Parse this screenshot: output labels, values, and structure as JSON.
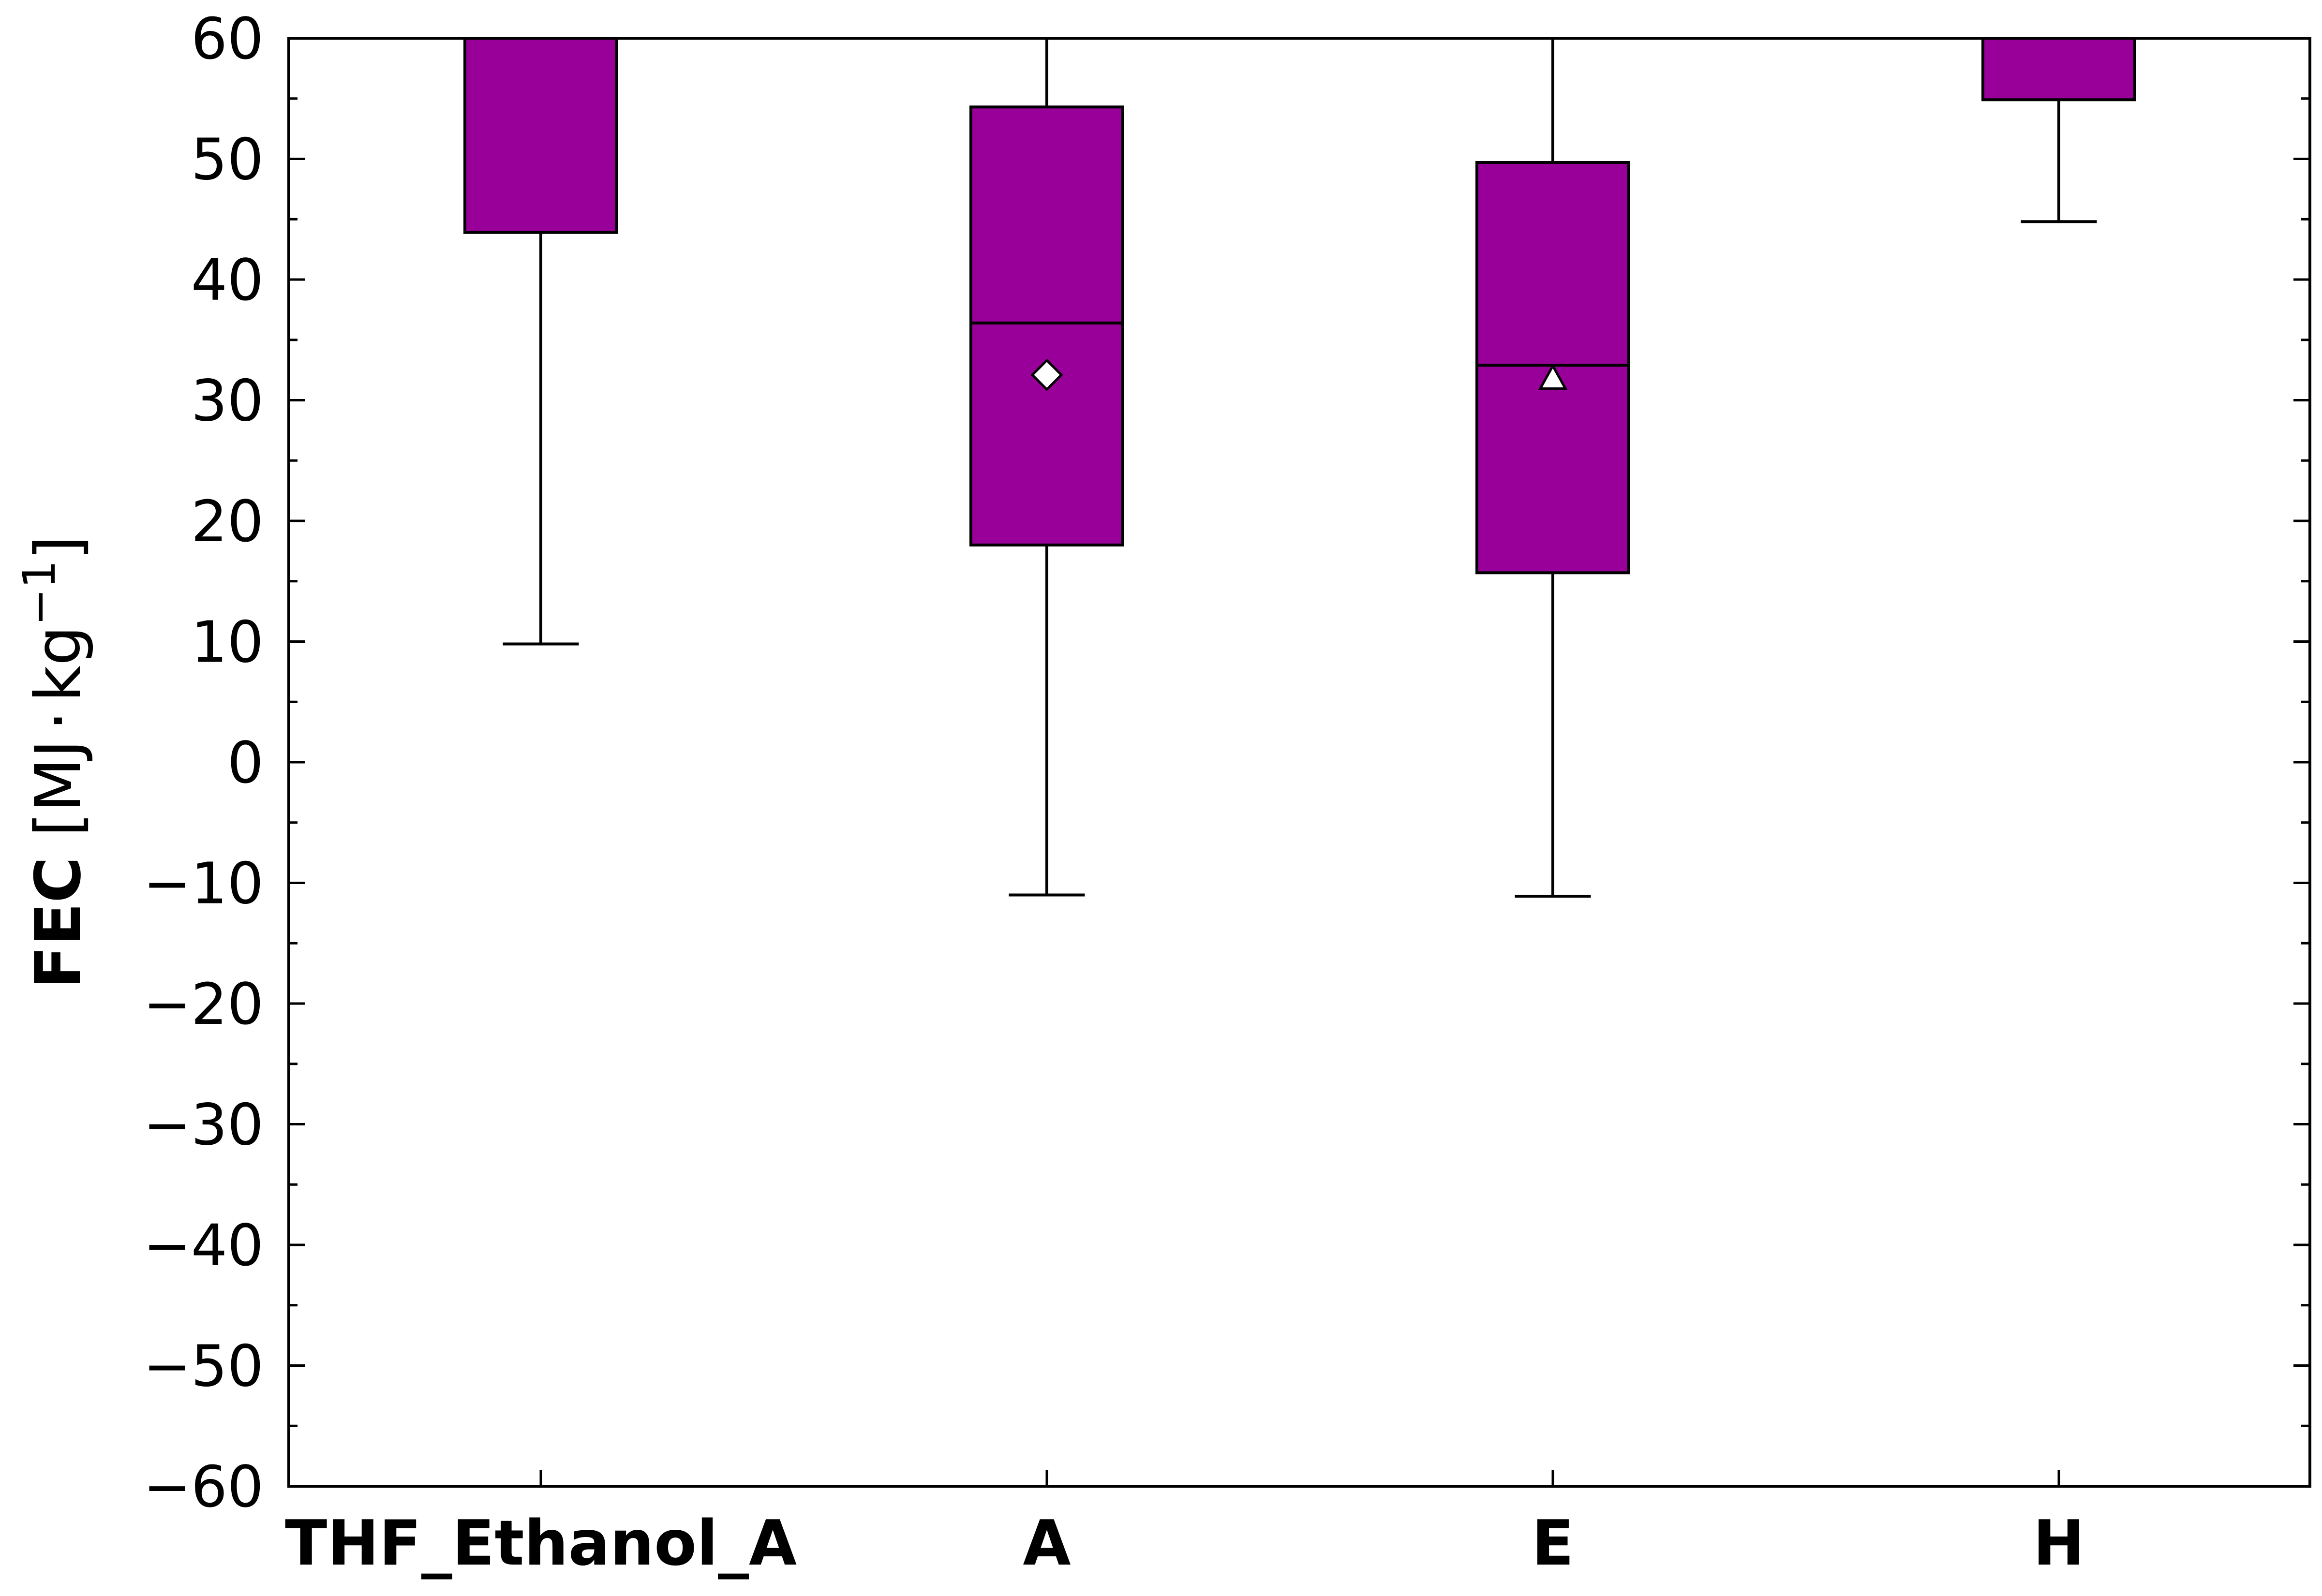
{
  "chart_data": {
    "type": "box",
    "title": "",
    "xlabel": "",
    "ylabel": {
      "bold": "FEC",
      "unit_prefix": " [MJ",
      "dot": "·",
      "unit_mid": "kg",
      "exponent": "−1",
      "unit_suffix": "]"
    },
    "ylim": [
      -60,
      60
    ],
    "y_major_ticks": [
      -60,
      -50,
      -40,
      -30,
      -20,
      -10,
      0,
      10,
      20,
      30,
      40,
      50,
      60
    ],
    "y_tick_labels": [
      "−60",
      "−50",
      "−40",
      "−30",
      "−20",
      "−10",
      "0",
      "10",
      "20",
      "30",
      "40",
      "50",
      "60"
    ],
    "y_minor_step": 5,
    "grid": false,
    "box_color": "#990099",
    "edge_color": "#000000",
    "categories": [
      "THF_Ethanol_A",
      "A",
      "E",
      "H"
    ],
    "boxes": [
      {
        "category": "THF_Ethanol_A",
        "whisker_low": 9.8,
        "q1": 43.9,
        "median": null,
        "q3": null,
        "whisker_high": null,
        "mean": null,
        "mean_marker": null
      },
      {
        "category": "A",
        "whisker_low": -11.0,
        "q1": 18.0,
        "median": 36.4,
        "q3": 54.3,
        "whisker_high": null,
        "mean": 32.1,
        "mean_marker": "diamond"
      },
      {
        "category": "E",
        "whisker_low": -11.1,
        "q1": 15.7,
        "median": 32.9,
        "q3": 49.7,
        "whisker_high": null,
        "mean": 31.8,
        "mean_marker": "triangle"
      },
      {
        "category": "H",
        "whisker_low": 44.8,
        "q1": 54.9,
        "median": null,
        "q3": null,
        "whisker_high": null,
        "mean": null,
        "mean_marker": null
      }
    ]
  }
}
